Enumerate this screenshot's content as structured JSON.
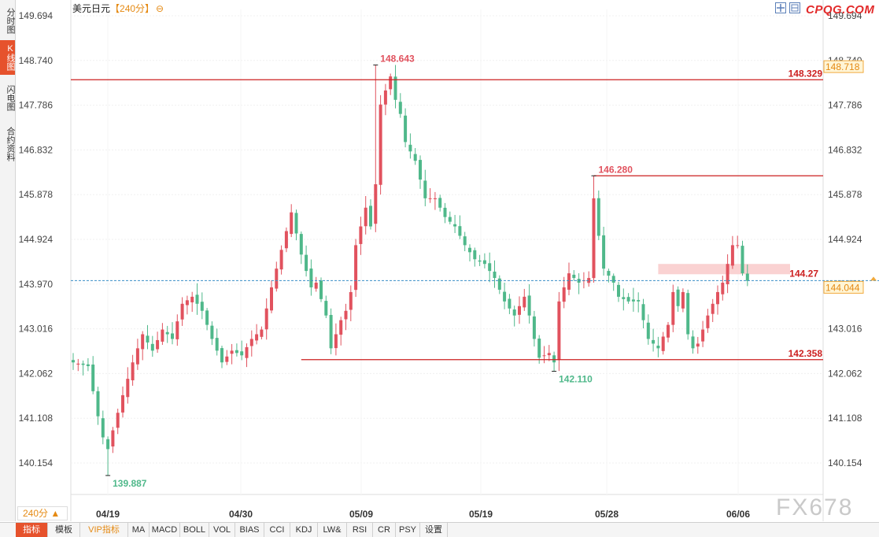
{
  "sidebar": {
    "items": [
      {
        "label": "分时图",
        "active": false
      },
      {
        "label": "K线图",
        "active": true
      },
      {
        "label": "闪电图",
        "active": false
      },
      {
        "label": "合约资料",
        "active": false
      }
    ]
  },
  "header": {
    "symbol": "美元日元",
    "period": "【240分】",
    "zoom_icon": "zoom-out-icon"
  },
  "brand": "CPQG.COM",
  "toolbar_icons": [
    "grid-icon",
    "layout-icon"
  ],
  "period_selector": "240分 ▲",
  "watermark": "FX678",
  "tabs": [
    {
      "label": "指标",
      "active": true
    },
    {
      "label": "模板"
    },
    {
      "label": "VIP指标",
      "vip": true
    },
    {
      "label": "MA"
    },
    {
      "label": "MACD"
    },
    {
      "label": "BOLL"
    },
    {
      "label": "VOL"
    },
    {
      "label": "BIAS"
    },
    {
      "label": "CCI"
    },
    {
      "label": "KDJ"
    },
    {
      "label": "LW&"
    },
    {
      "label": "RSI"
    },
    {
      "label": "CR"
    },
    {
      "label": "PSY"
    },
    {
      "label": "设置"
    }
  ],
  "colors": {
    "up": "#e1525e",
    "down": "#4fb88a",
    "level_line": "#cc1f1f",
    "current_line": "#3a8fc7",
    "current_tag_fill": "#fff5d6",
    "current_tag_border": "#f0a93c",
    "zone_fill": "#f9caca"
  },
  "chart_data": {
    "type": "candlestick",
    "y_axis_ticks": [
      "149.694",
      "148.740",
      "147.786",
      "146.832",
      "145.878",
      "144.924",
      "143.970",
      "143.016",
      "142.062",
      "141.108",
      "140.154"
    ],
    "ylim": [
      140.154,
      149.694
    ],
    "x_axis_ticks": [
      "04/19",
      "04/30",
      "05/09",
      "05/19",
      "05/28",
      "06/06"
    ],
    "grid": true,
    "horizontal_levels": [
      {
        "label": "148.329",
        "value": 148.329,
        "from_bar": 0
      },
      {
        "label": "146.280",
        "value": 146.28,
        "from_bar": 105
      },
      {
        "label": "142.358",
        "value": 142.358,
        "from_bar": 46
      }
    ],
    "zone": {
      "label": "144.27",
      "low": 144.18,
      "high": 144.4,
      "from_bar": 118
    },
    "extremes": [
      {
        "label": "148.643",
        "bar": 61,
        "value": 148.643,
        "kind": "high"
      },
      {
        "label": "146.280",
        "bar": 105,
        "value": 146.28,
        "kind": "high"
      },
      {
        "label": "139.887",
        "bar": 7,
        "value": 139.887,
        "kind": "low"
      },
      {
        "label": "142.110",
        "bar": 97,
        "value": 142.11,
        "kind": "low"
      }
    ],
    "current_price": {
      "value": 144.044,
      "label": "144.044"
    },
    "right_axis_top_label": "148.718",
    "right_axis_partial": "144.??",
    "close_path": [
      [
        0,
        142.3
      ],
      [
        3,
        142.22
      ],
      [
        5,
        141.15
      ],
      [
        6,
        140.7
      ],
      [
        7,
        140.45
      ],
      [
        8,
        140.85
      ],
      [
        10,
        141.6
      ],
      [
        12,
        142.3
      ],
      [
        14,
        142.9
      ],
      [
        16,
        142.55
      ],
      [
        18,
        143.0
      ],
      [
        20,
        142.8
      ],
      [
        22,
        143.55
      ],
      [
        24,
        143.7
      ],
      [
        26,
        143.4
      ],
      [
        28,
        142.8
      ],
      [
        30,
        142.3
      ],
      [
        32,
        142.55
      ],
      [
        34,
        142.45
      ],
      [
        36,
        142.8
      ],
      [
        38,
        143.0
      ],
      [
        40,
        143.9
      ],
      [
        42,
        144.7
      ],
      [
        44,
        145.5
      ],
      [
        46,
        144.6
      ],
      [
        48,
        143.9
      ],
      [
        49,
        144.0
      ],
      [
        51,
        143.3
      ],
      [
        52,
        142.6
      ],
      [
        54,
        143.2
      ],
      [
        55,
        143.4
      ],
      [
        56,
        143.8
      ],
      [
        57,
        144.8
      ],
      [
        59,
        145.6
      ],
      [
        60,
        145.2
      ],
      [
        61,
        146.1
      ],
      [
        62,
        147.8
      ],
      [
        63,
        148.1
      ],
      [
        64,
        148.4
      ],
      [
        65,
        147.9
      ],
      [
        66,
        147.6
      ],
      [
        67,
        147.0
      ],
      [
        69,
        146.6
      ],
      [
        71,
        145.8
      ],
      [
        73,
        145.8
      ],
      [
        75,
        145.4
      ],
      [
        77,
        145.2
      ],
      [
        79,
        144.8
      ],
      [
        81,
        144.5
      ],
      [
        83,
        144.4
      ],
      [
        85,
        144.1
      ],
      [
        87,
        143.6
      ],
      [
        89,
        143.3
      ],
      [
        90,
        143.5
      ],
      [
        91,
        143.7
      ],
      [
        92,
        143.3
      ],
      [
        93,
        142.8
      ],
      [
        94,
        142.4
      ],
      [
        96,
        142.5
      ],
      [
        97,
        142.3
      ],
      [
        98,
        143.6
      ],
      [
        100,
        144.2
      ],
      [
        102,
        144.0
      ],
      [
        104,
        144.1
      ],
      [
        105,
        145.8
      ],
      [
        106,
        145.0
      ],
      [
        107,
        144.3
      ],
      [
        109,
        144.0
      ],
      [
        110,
        143.7
      ],
      [
        112,
        143.6
      ],
      [
        114,
        143.6
      ],
      [
        116,
        142.8
      ],
      [
        118,
        142.6
      ],
      [
        120,
        143.1
      ],
      [
        121,
        143.8
      ],
      [
        122,
        143.5
      ],
      [
        123,
        143.8
      ],
      [
        124,
        142.9
      ],
      [
        125,
        142.6
      ],
      [
        126,
        142.7
      ],
      [
        128,
        143.3
      ],
      [
        130,
        143.8
      ],
      [
        131,
        144.0
      ],
      [
        132,
        144.4
      ],
      [
        133,
        144.8
      ],
      [
        134,
        144.8
      ],
      [
        135,
        144.2
      ],
      [
        136,
        144.04
      ]
    ]
  }
}
